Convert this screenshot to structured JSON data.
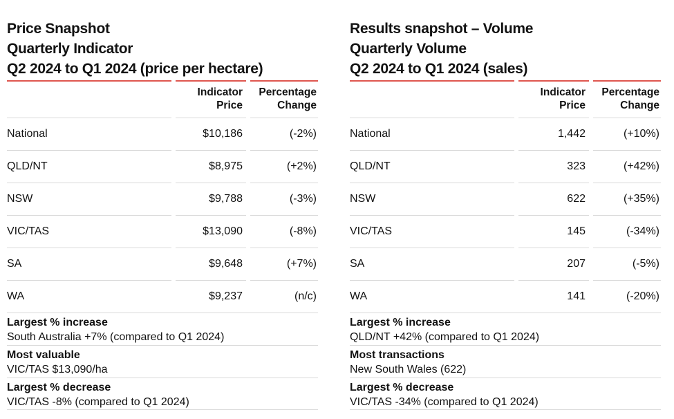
{
  "colors": {
    "accent_red": "#df564e",
    "divider_gray": "#d9d9d9",
    "text": "#121212",
    "background": "#ffffff"
  },
  "chart_data": [
    {
      "type": "table",
      "title_lines": [
        "Price Snapshot",
        "Quarterly Indicator",
        "Q2 2024 to Q1 2024 (price per hectare)"
      ],
      "col_headers": {
        "region": "",
        "indicator": "Indicator\nPrice",
        "change": "Percentage\nChange"
      },
      "rows": [
        {
          "region": "National",
          "value": "$10,186",
          "change": "(-2%)"
        },
        {
          "region": "QLD/NT",
          "value": "$8,975",
          "change": "(+2%)"
        },
        {
          "region": "NSW",
          "value": "$9,788",
          "change": "(-3%)"
        },
        {
          "region": "VIC/TAS",
          "value": "$13,090",
          "change": "(-8%)"
        },
        {
          "region": "SA",
          "value": "$9,648",
          "change": "(+7%)"
        },
        {
          "region": "WA",
          "value": "$9,237",
          "change": "(n/c)"
        }
      ],
      "footnotes": [
        {
          "label": "Largest % increase",
          "value": "South Australia +7% (compared to Q1 2024)"
        },
        {
          "label": "Most valuable",
          "value": "VIC/TAS $13,090/ha"
        },
        {
          "label": "Largest % decrease",
          "value": "VIC/TAS -8% (compared to Q1 2024)"
        }
      ]
    },
    {
      "type": "table",
      "title_lines": [
        "Results snapshot – Volume",
        "Quarterly Volume",
        "Q2 2024 to Q1 2024 (sales)"
      ],
      "col_headers": {
        "region": "",
        "indicator": "Indicator\nPrice",
        "change": "Percentage\nChange"
      },
      "rows": [
        {
          "region": "National",
          "value": "1,442",
          "change": "(+10%)"
        },
        {
          "region": "QLD/NT",
          "value": "323",
          "change": "(+42%)"
        },
        {
          "region": "NSW",
          "value": "622",
          "change": "(+35%)"
        },
        {
          "region": "VIC/TAS",
          "value": "145",
          "change": "(-34%)"
        },
        {
          "region": "SA",
          "value": "207",
          "change": "(-5%)"
        },
        {
          "region": "WA",
          "value": "141",
          "change": "(-20%)"
        }
      ],
      "footnotes": [
        {
          "label": "Largest % increase",
          "value": "QLD/NT +42% (compared to Q1 2024)"
        },
        {
          "label": "Most transactions",
          "value": "New South Wales (622)"
        },
        {
          "label": "Largest % decrease",
          "value": "VIC/TAS -34% (compared to Q1 2024)"
        }
      ]
    }
  ]
}
